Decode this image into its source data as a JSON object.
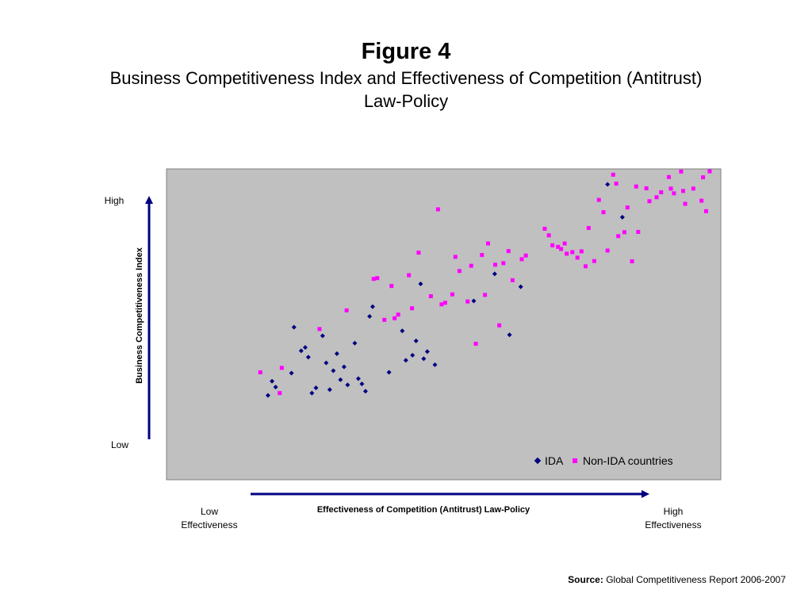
{
  "figure": {
    "title": "Figure 4",
    "subtitle_line1": "Business Competitiveness Index and Effectiveness of Competition (Antitrust)",
    "subtitle_line2": "Law-Policy"
  },
  "labels": {
    "y_high": "High",
    "y_low": "Low",
    "x_low_line1": "Low",
    "x_low_line2": "Effectiveness",
    "x_high_line1": "High",
    "x_high_line2": "Effectiveness"
  },
  "source": {
    "label": "Source:",
    "text": "Global Competitiveness Report 2006-2007"
  },
  "colors": {
    "plot_background": "#c0c0c0",
    "axis_arrow": "#000080",
    "ida": "#000080",
    "non_ida": "#ff00ff"
  },
  "chart_data": {
    "type": "scatter",
    "title": "",
    "xlabel": "Effectiveness of Competition (Antitrust) Law-Policy",
    "ylabel": "Business Competitiveness Index",
    "xlim": [
      0,
      100
    ],
    "ylim": [
      0,
      100
    ],
    "grid": false,
    "legend_position": "bottom-right",
    "series": [
      {
        "name": "IDA",
        "marker": "diamond",
        "points": [
          [
            12.1,
            14.6
          ],
          [
            12.9,
            20.0
          ],
          [
            13.6,
            17.8
          ],
          [
            16.7,
            23.1
          ],
          [
            17.2,
            40.6
          ],
          [
            18.6,
            31.6
          ],
          [
            19.4,
            32.9
          ],
          [
            20.0,
            29.2
          ],
          [
            20.7,
            15.5
          ],
          [
            21.5,
            17.5
          ],
          [
            22.8,
            37.3
          ],
          [
            23.5,
            27.0
          ],
          [
            24.2,
            16.8
          ],
          [
            24.9,
            24.0
          ],
          [
            25.6,
            30.5
          ],
          [
            26.3,
            20.6
          ],
          [
            27.0,
            25.5
          ],
          [
            27.7,
            18.6
          ],
          [
            29.1,
            34.5
          ],
          [
            29.8,
            21.0
          ],
          [
            30.5,
            19.0
          ],
          [
            31.2,
            16.2
          ],
          [
            32.0,
            44.7
          ],
          [
            32.6,
            48.4
          ],
          [
            35.8,
            23.4
          ],
          [
            38.4,
            39.2
          ],
          [
            39.1,
            28.0
          ],
          [
            40.4,
            29.9
          ],
          [
            41.1,
            35.4
          ],
          [
            42.0,
            57.1
          ],
          [
            42.6,
            28.6
          ],
          [
            43.3,
            31.3
          ],
          [
            44.8,
            26.3
          ],
          [
            52.4,
            50.6
          ],
          [
            56.5,
            60.9
          ],
          [
            59.4,
            37.7
          ],
          [
            61.6,
            56.0
          ],
          [
            78.6,
            95.0
          ],
          [
            81.5,
            82.5
          ]
        ]
      },
      {
        "name": "Non-IDA countries",
        "marker": "square",
        "points": [
          [
            10.6,
            23.4
          ],
          [
            14.4,
            15.5
          ],
          [
            14.8,
            25.1
          ],
          [
            22.2,
            39.9
          ],
          [
            27.5,
            47.0
          ],
          [
            32.8,
            59.0
          ],
          [
            33.5,
            59.3
          ],
          [
            34.9,
            43.4
          ],
          [
            36.3,
            56.3
          ],
          [
            36.9,
            44.0
          ],
          [
            37.6,
            45.4
          ],
          [
            39.7,
            60.4
          ],
          [
            40.3,
            47.8
          ],
          [
            41.6,
            69.0
          ],
          [
            44.0,
            52.4
          ],
          [
            45.4,
            85.5
          ],
          [
            46.1,
            49.3
          ],
          [
            46.8,
            49.9
          ],
          [
            48.2,
            53.1
          ],
          [
            48.8,
            67.4
          ],
          [
            49.6,
            62.0
          ],
          [
            51.2,
            50.4
          ],
          [
            51.9,
            64.0
          ],
          [
            52.8,
            34.3
          ],
          [
            54.0,
            68.1
          ],
          [
            54.6,
            52.9
          ],
          [
            55.2,
            72.5
          ],
          [
            56.6,
            64.4
          ],
          [
            57.4,
            41.3
          ],
          [
            58.2,
            65.0
          ],
          [
            59.2,
            69.6
          ],
          [
            60.0,
            58.5
          ],
          [
            61.8,
            66.5
          ],
          [
            62.6,
            67.9
          ],
          [
            66.3,
            78.1
          ],
          [
            67.1,
            75.6
          ],
          [
            67.8,
            71.8
          ],
          [
            68.9,
            71.2
          ],
          [
            69.5,
            70.4
          ],
          [
            70.2,
            72.5
          ],
          [
            70.6,
            68.6
          ],
          [
            71.7,
            69.2
          ],
          [
            72.7,
            67.1
          ],
          [
            73.5,
            69.5
          ],
          [
            74.3,
            63.8
          ],
          [
            74.9,
            78.4
          ],
          [
            76.0,
            65.8
          ],
          [
            76.9,
            89.1
          ],
          [
            77.8,
            84.4
          ],
          [
            78.6,
            69.8
          ],
          [
            79.7,
            98.7
          ],
          [
            80.3,
            95.3
          ],
          [
            80.7,
            75.3
          ],
          [
            81.9,
            76.8
          ],
          [
            82.5,
            86.2
          ],
          [
            83.4,
            65.7
          ],
          [
            84.2,
            94.2
          ],
          [
            84.6,
            76.9
          ],
          [
            86.2,
            93.5
          ],
          [
            86.8,
            88.6
          ],
          [
            88.2,
            90.1
          ],
          [
            89.1,
            92.0
          ],
          [
            90.6,
            97.8
          ],
          [
            91.0,
            93.4
          ],
          [
            91.6,
            91.6
          ],
          [
            93.0,
            99.9
          ],
          [
            93.4,
            92.5
          ],
          [
            93.8,
            87.6
          ],
          [
            95.4,
            93.4
          ],
          [
            97.0,
            88.8
          ],
          [
            97.3,
            97.7
          ],
          [
            97.9,
            84.8
          ],
          [
            98.6,
            100.0
          ]
        ]
      }
    ]
  }
}
